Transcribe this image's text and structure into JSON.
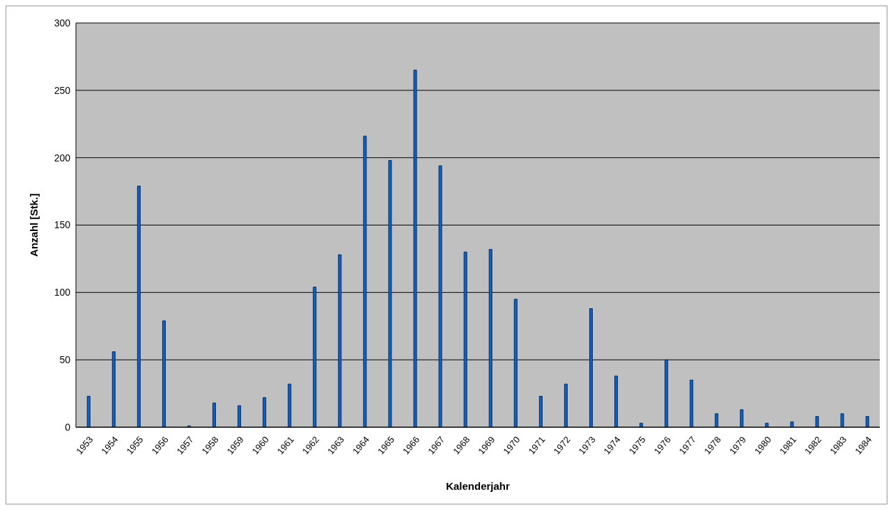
{
  "chart_data": {
    "type": "bar",
    "xlabel": "Kalenderjahr",
    "ylabel": "Anzahl [Stk.]",
    "categories": [
      "1953",
      "1954",
      "1955",
      "1956",
      "1957",
      "1958",
      "1959",
      "1960",
      "1961",
      "1962",
      "1963",
      "1964",
      "1965",
      "1966",
      "1967",
      "1968",
      "1969",
      "1970",
      "1971",
      "1972",
      "1973",
      "1974",
      "1975",
      "1976",
      "1977",
      "1978",
      "1979",
      "1980",
      "1981",
      "1982",
      "1983",
      "1984"
    ],
    "values": [
      23,
      56,
      179,
      79,
      1,
      18,
      16,
      22,
      32,
      104,
      128,
      216,
      198,
      265,
      194,
      130,
      132,
      95,
      23,
      32,
      88,
      38,
      3,
      50,
      35,
      10,
      13,
      3,
      4,
      8,
      10,
      8
    ],
    "color": "#0b63c9",
    "ylim": [
      0,
      300
    ],
    "yticks": [
      0,
      50,
      100,
      150,
      200,
      250,
      300
    ],
    "grid": "y",
    "legend": false
  }
}
